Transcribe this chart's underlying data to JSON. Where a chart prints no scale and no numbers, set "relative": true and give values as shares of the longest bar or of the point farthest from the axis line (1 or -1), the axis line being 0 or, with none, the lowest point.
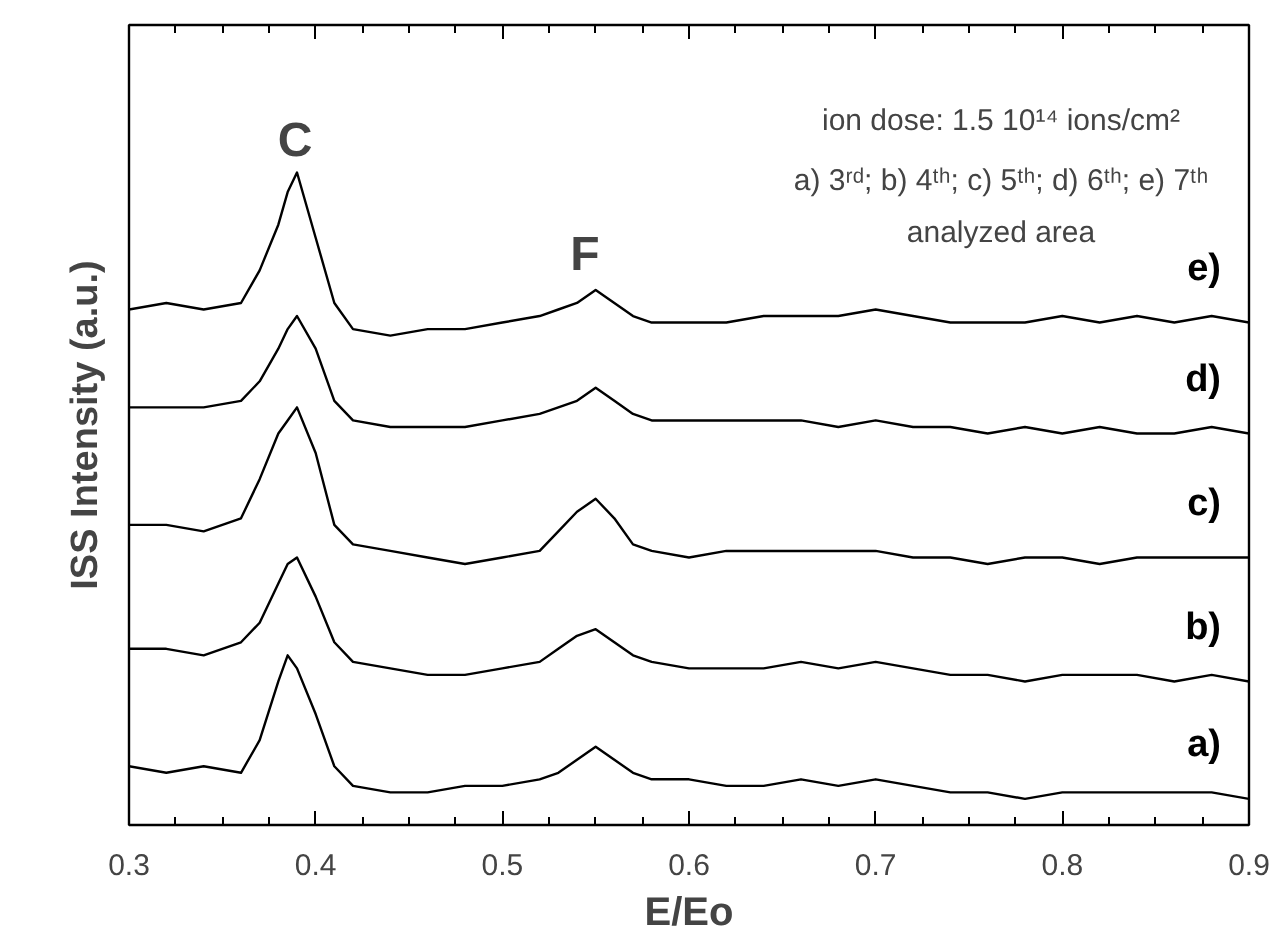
{
  "chart_data": {
    "type": "line",
    "relative": true,
    "xlabel": "E/Eo",
    "ylabel": "ISS Intensity (a.u.)",
    "xlim": [
      0.3,
      0.9
    ],
    "xticks": [
      0.3,
      0.4,
      0.5,
      0.6,
      0.7,
      0.8,
      0.9
    ],
    "tick_labels": "x",
    "x": [
      0.3,
      0.32,
      0.34,
      0.36,
      0.37,
      0.38,
      0.385,
      0.39,
      0.4,
      0.41,
      0.42,
      0.44,
      0.46,
      0.48,
      0.5,
      0.52,
      0.53,
      0.54,
      0.55,
      0.56,
      0.57,
      0.58,
      0.6,
      0.62,
      0.64,
      0.66,
      0.68,
      0.7,
      0.72,
      0.74,
      0.76,
      0.78,
      0.8,
      0.82,
      0.84,
      0.86,
      0.88,
      0.9
    ],
    "series": [
      {
        "name": "a)",
        "color": "#000000",
        "values": [
          0.09,
          0.08,
          0.09,
          0.08,
          0.13,
          0.22,
          0.26,
          0.24,
          0.17,
          0.09,
          0.06,
          0.05,
          0.05,
          0.06,
          0.06,
          0.07,
          0.08,
          0.1,
          0.12,
          0.1,
          0.08,
          0.07,
          0.07,
          0.06,
          0.06,
          0.07,
          0.06,
          0.07,
          0.06,
          0.05,
          0.05,
          0.04,
          0.05,
          0.05,
          0.05,
          0.05,
          0.05,
          0.04
        ]
      },
      {
        "name": "b)",
        "color": "#000000",
        "values": [
          0.27,
          0.27,
          0.26,
          0.28,
          0.31,
          0.37,
          0.4,
          0.41,
          0.35,
          0.28,
          0.25,
          0.24,
          0.23,
          0.23,
          0.24,
          0.25,
          0.27,
          0.29,
          0.3,
          0.28,
          0.26,
          0.25,
          0.24,
          0.24,
          0.24,
          0.25,
          0.24,
          0.25,
          0.24,
          0.23,
          0.23,
          0.22,
          0.23,
          0.23,
          0.23,
          0.22,
          0.23,
          0.22
        ]
      },
      {
        "name": "c)",
        "color": "#000000",
        "values": [
          0.46,
          0.46,
          0.45,
          0.47,
          0.53,
          0.6,
          0.62,
          0.64,
          0.57,
          0.46,
          0.43,
          0.42,
          0.41,
          0.4,
          0.41,
          0.42,
          0.45,
          0.48,
          0.5,
          0.47,
          0.43,
          0.42,
          0.41,
          0.42,
          0.42,
          0.42,
          0.42,
          0.42,
          0.41,
          0.41,
          0.4,
          0.41,
          0.41,
          0.4,
          0.41,
          0.41,
          0.41,
          0.41
        ]
      },
      {
        "name": "d)",
        "color": "#000000",
        "values": [
          0.64,
          0.64,
          0.64,
          0.65,
          0.68,
          0.73,
          0.76,
          0.78,
          0.73,
          0.65,
          0.62,
          0.61,
          0.61,
          0.61,
          0.62,
          0.63,
          0.64,
          0.65,
          0.67,
          0.65,
          0.63,
          0.62,
          0.62,
          0.62,
          0.62,
          0.62,
          0.61,
          0.62,
          0.61,
          0.61,
          0.6,
          0.61,
          0.6,
          0.61,
          0.6,
          0.6,
          0.61,
          0.6
        ]
      },
      {
        "name": "e)",
        "color": "#000000",
        "values": [
          0.79,
          0.8,
          0.79,
          0.8,
          0.85,
          0.92,
          0.97,
          1.0,
          0.9,
          0.8,
          0.76,
          0.75,
          0.76,
          0.76,
          0.77,
          0.78,
          0.79,
          0.8,
          0.82,
          0.8,
          0.78,
          0.77,
          0.77,
          0.77,
          0.78,
          0.78,
          0.78,
          0.79,
          0.78,
          0.77,
          0.77,
          0.77,
          0.78,
          0.77,
          0.78,
          0.77,
          0.78,
          0.77
        ]
      }
    ],
    "annotations": [
      "C",
      "F",
      "ion dose: 1.5 10¹⁴ ions/cm²",
      "a) 3ʳᵈ; b) 4ᵗʰ; c) 5ᵗʰ; d) 6ᵗʰ; e) 7ᵗʰ",
      "analyzed area"
    ]
  }
}
